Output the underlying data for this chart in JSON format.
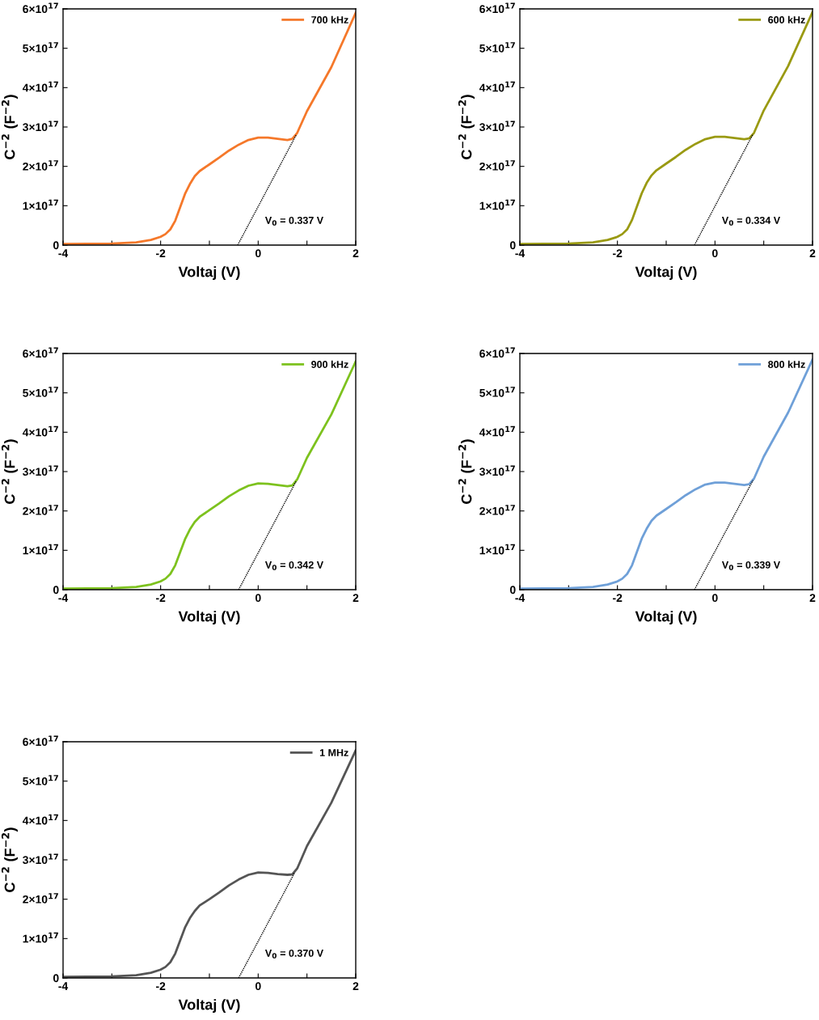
{
  "chart_data": [
    {
      "type": "line",
      "xlabel": "Voltaj (V)",
      "ylabel": "C$^{−2}$ (F$^{−2}$)",
      "legend": "top right",
      "grid": false,
      "marker": "none",
      "xlim": [
        -4,
        2
      ],
      "ylim": [
        0,
        6e+17
      ],
      "xticks": [
        -4,
        {
          "value": -3,
          "label": null
        },
        -2,
        {
          "value": -1,
          "label": null
        },
        0,
        {
          "value": 1,
          "label": null
        },
        2
      ],
      "yticks": [
        0,
        {
          "value": 1e+17,
          "label": "1×10$^{17}$"
        },
        {
          "value": 2e+17,
          "label": "2×10$^{17}$"
        },
        {
          "value": 3e+17,
          "label": "3×10$^{17}$"
        },
        {
          "value": 4e+17,
          "label": "4×10$^{17}$"
        },
        {
          "value": 5e+17,
          "label": "5×10$^{17}$"
        },
        {
          "value": 6e+17,
          "label": "6×10$^{17}$"
        }
      ],
      "annotations": [
        "V$_{0}$ = 0.337 V"
      ],
      "series": [
        {
          "name": "700 kHz",
          "color": "#f5782a",
          "line_style": "solid",
          "x": [
            -4,
            -3,
            -2.5,
            -2.2,
            -2.0,
            -1.9,
            -1.8,
            -1.7,
            -1.6,
            -1.5,
            -1.4,
            -1.3,
            -1.2,
            -1.0,
            -0.8,
            -0.6,
            -0.4,
            -0.2,
            0,
            0.2,
            0.4,
            0.6,
            0.7,
            0.8,
            1.0,
            1.5,
            2.0
          ],
          "values": [
            3000000000000000.0,
            4000000000000000.0,
            7000000000000000.0,
            1.3e+16,
            2.1e+16,
            2.8e+16,
            4e+16,
            6.2e+16,
            9.6e+16,
            1.3e+17,
            1.55e+17,
            1.75e+17,
            1.88e+17,
            2.05e+17,
            2.22e+17,
            2.4e+17,
            2.55e+17,
            2.67e+17,
            2.73e+17,
            2.73e+17,
            2.7e+17,
            2.67e+17,
            2.7e+17,
            2.85e+17,
            3.4e+17,
            4.52e+17,
            5.9e+17
          ]
        },
        {
          "color": "#000000",
          "line_style": "dotted",
          "x": [
            -0.42,
            0.78
          ],
          "values": [
            0,
            2.8e+17
          ]
        }
      ]
    },
    {
      "type": "line",
      "xlabel": "Voltaj (V)",
      "ylabel": "C$^{−2}$ (F$^{−2}$)",
      "legend": "top right",
      "grid": false,
      "marker": "none",
      "xlim": [
        -4,
        2
      ],
      "ylim": [
        0,
        6e+17
      ],
      "xticks": [
        -4,
        {
          "value": -3,
          "label": null
        },
        -2,
        {
          "value": -1,
          "label": null
        },
        0,
        {
          "value": 1,
          "label": null
        },
        2
      ],
      "yticks": [
        0,
        {
          "value": 1e+17,
          "label": "1×10$^{17}$"
        },
        {
          "value": 2e+17,
          "label": "2×10$^{17}$"
        },
        {
          "value": 3e+17,
          "label": "3×10$^{17}$"
        },
        {
          "value": 4e+17,
          "label": "4×10$^{17}$"
        },
        {
          "value": 5e+17,
          "label": "5×10$^{17}$"
        },
        {
          "value": 6e+17,
          "label": "6×10$^{17}$"
        }
      ],
      "annotations": [
        "V$_{0}$ = 0.334 V"
      ],
      "series": [
        {
          "name": "600 kHz",
          "color": "#9a9a12",
          "line_style": "solid",
          "x": [
            -4,
            -3,
            -2.5,
            -2.2,
            -2.0,
            -1.9,
            -1.8,
            -1.7,
            -1.6,
            -1.5,
            -1.4,
            -1.3,
            -1.2,
            -1.0,
            -0.8,
            -0.6,
            -0.4,
            -0.2,
            0,
            0.2,
            0.4,
            0.6,
            0.7,
            0.8,
            1.0,
            1.5,
            2.0
          ],
          "values": [
            3000000000000000.0,
            4000000000000000.0,
            7000000000000000.0,
            1.3e+16,
            2.1e+16,
            2.8e+16,
            4e+16,
            6.4e+16,
            9.8e+16,
            1.32e+17,
            1.58e+17,
            1.77e+17,
            1.9e+17,
            2.07e+17,
            2.24e+17,
            2.42e+17,
            2.57e+17,
            2.69e+17,
            2.75e+17,
            2.75e+17,
            2.72e+17,
            2.69e+17,
            2.71e+17,
            2.85e+17,
            3.42e+17,
            4.55e+17,
            5.92e+17
          ]
        },
        {
          "color": "#000000",
          "line_style": "dotted",
          "x": [
            -0.42,
            0.78
          ],
          "values": [
            0,
            2.82e+17
          ]
        }
      ]
    },
    {
      "type": "line",
      "xlabel": "Voltaj (V)",
      "ylabel": "C$^{−2}$ (F$^{−2}$)",
      "legend": "top right",
      "grid": false,
      "marker": "none",
      "xlim": [
        -4,
        2
      ],
      "ylim": [
        0,
        6e+17
      ],
      "xticks": [
        -4,
        {
          "value": -3,
          "label": null
        },
        -2,
        {
          "value": -1,
          "label": null
        },
        0,
        {
          "value": 1,
          "label": null
        },
        2
      ],
      "yticks": [
        0,
        {
          "value": 1e+17,
          "label": "1×10$^{17}$"
        },
        {
          "value": 2e+17,
          "label": "2×10$^{17}$"
        },
        {
          "value": 3e+17,
          "label": "3×10$^{17}$"
        },
        {
          "value": 4e+17,
          "label": "4×10$^{17}$"
        },
        {
          "value": 5e+17,
          "label": "5×10$^{17}$"
        },
        {
          "value": 6e+17,
          "label": "6×10$^{17}$"
        }
      ],
      "annotations": [
        "V$_{0}$ = 0.342 V"
      ],
      "series": [
        {
          "name": "900 kHz",
          "color": "#7dc21e",
          "line_style": "solid",
          "x": [
            -4,
            -3,
            -2.5,
            -2.2,
            -2.0,
            -1.9,
            -1.8,
            -1.7,
            -1.6,
            -1.5,
            -1.4,
            -1.3,
            -1.2,
            -1.0,
            -0.8,
            -0.6,
            -0.4,
            -0.2,
            0,
            0.2,
            0.4,
            0.6,
            0.7,
            0.8,
            1.0,
            1.5,
            2.0
          ],
          "values": [
            3000000000000000.0,
            4000000000000000.0,
            7000000000000000.0,
            1.3e+16,
            2.1e+16,
            2.8e+16,
            4e+16,
            6.2e+16,
            9.5e+16,
            1.28e+17,
            1.53e+17,
            1.72e+17,
            1.85e+17,
            2.02e+17,
            2.19e+17,
            2.37e+17,
            2.52e+17,
            2.64e+17,
            2.7e+17,
            2.69e+17,
            2.66e+17,
            2.63e+17,
            2.65e+17,
            2.8e+17,
            3.35e+17,
            4.45e+17,
            5.8e+17
          ]
        },
        {
          "color": "#000000",
          "line_style": "dotted",
          "x": [
            -0.4,
            0.78
          ],
          "values": [
            0,
            2.76e+17
          ]
        }
      ]
    },
    {
      "type": "line",
      "xlabel": "Voltaj (V)",
      "ylabel": "C$^{−2}$ (F$^{−2}$)",
      "legend": "top right",
      "grid": false,
      "marker": "none",
      "xlim": [
        -4,
        2
      ],
      "ylim": [
        0,
        6e+17
      ],
      "xticks": [
        -4,
        {
          "value": -3,
          "label": null
        },
        -2,
        {
          "value": -1,
          "label": null
        },
        0,
        {
          "value": 1,
          "label": null
        },
        2
      ],
      "yticks": [
        0,
        {
          "value": 1e+17,
          "label": "1×10$^{17}$"
        },
        {
          "value": 2e+17,
          "label": "2×10$^{17}$"
        },
        {
          "value": 3e+17,
          "label": "3×10$^{17}$"
        },
        {
          "value": 4e+17,
          "label": "4×10$^{17}$"
        },
        {
          "value": 5e+17,
          "label": "5×10$^{17}$"
        },
        {
          "value": 6e+17,
          "label": "6×10$^{17}$"
        }
      ],
      "annotations": [
        "V$_{0}$ = 0.339 V"
      ],
      "series": [
        {
          "name": "800 kHz",
          "color": "#6fa0d8",
          "line_style": "solid",
          "x": [
            -4,
            -3,
            -2.5,
            -2.2,
            -2.0,
            -1.9,
            -1.8,
            -1.7,
            -1.6,
            -1.5,
            -1.4,
            -1.3,
            -1.2,
            -1.0,
            -0.8,
            -0.6,
            -0.4,
            -0.2,
            0,
            0.2,
            0.4,
            0.6,
            0.7,
            0.8,
            1.0,
            1.5,
            2.0
          ],
          "values": [
            3000000000000000.0,
            4000000000000000.0,
            7000000000000000.0,
            1.3e+16,
            2.1e+16,
            2.8e+16,
            4e+16,
            6.2e+16,
            9.6e+16,
            1.3e+17,
            1.55e+17,
            1.75e+17,
            1.88e+17,
            2.05e+17,
            2.22e+17,
            2.4e+17,
            2.55e+17,
            2.67e+17,
            2.72e+17,
            2.72e+17,
            2.69e+17,
            2.66e+17,
            2.68e+17,
            2.82e+17,
            3.38e+17,
            4.5e+17,
            5.85e+17
          ]
        },
        {
          "color": "#000000",
          "line_style": "dotted",
          "x": [
            -0.42,
            0.78
          ],
          "values": [
            0,
            2.78e+17
          ]
        }
      ]
    },
    {
      "type": "line",
      "xlabel": "Voltaj (V)",
      "ylabel": "C$^{−2}$ (F$^{−2}$)",
      "legend": "top right",
      "grid": false,
      "marker": "none",
      "xlim": [
        -4,
        2
      ],
      "ylim": [
        0,
        6e+17
      ],
      "xticks": [
        -4,
        {
          "value": -3,
          "label": null
        },
        -2,
        {
          "value": -1,
          "label": null
        },
        0,
        {
          "value": 1,
          "label": null
        },
        2
      ],
      "yticks": [
        0,
        {
          "value": 1e+17,
          "label": "1×10$^{17}$"
        },
        {
          "value": 2e+17,
          "label": "2×10$^{17}$"
        },
        {
          "value": 3e+17,
          "label": "3×10$^{17}$"
        },
        {
          "value": 4e+17,
          "label": "4×10$^{17}$"
        },
        {
          "value": 5e+17,
          "label": "5×10$^{17}$"
        },
        {
          "value": 6e+17,
          "label": "6×10$^{17}$"
        }
      ],
      "annotations": [
        "V$_{0}$ = 0.370 V"
      ],
      "series": [
        {
          "name": "1 MHz",
          "color": "#555555",
          "line_style": "solid",
          "x": [
            -4,
            -3,
            -2.5,
            -2.2,
            -2.0,
            -1.9,
            -1.8,
            -1.7,
            -1.6,
            -1.5,
            -1.4,
            -1.3,
            -1.2,
            -1.0,
            -0.8,
            -0.6,
            -0.4,
            -0.2,
            0,
            0.2,
            0.4,
            0.6,
            0.7,
            0.8,
            1.0,
            1.5,
            2.0
          ],
          "values": [
            3000000000000000.0,
            4000000000000000.0,
            7000000000000000.0,
            1.3e+16,
            2.1e+16,
            2.8e+16,
            4e+16,
            6.2e+16,
            9.5e+16,
            1.28e+17,
            1.52e+17,
            1.7e+17,
            1.84e+17,
            2e+17,
            2.17e+17,
            2.35e+17,
            2.5e+17,
            2.62e+17,
            2.68e+17,
            2.67e+17,
            2.64e+17,
            2.62e+17,
            2.63e+17,
            2.78e+17,
            3.35e+17,
            4.45e+17,
            5.78e+17
          ]
        },
        {
          "color": "#000000",
          "line_style": "dotted",
          "x": [
            -0.4,
            0.75
          ],
          "values": [
            0,
            2.68e+17
          ]
        }
      ]
    }
  ]
}
